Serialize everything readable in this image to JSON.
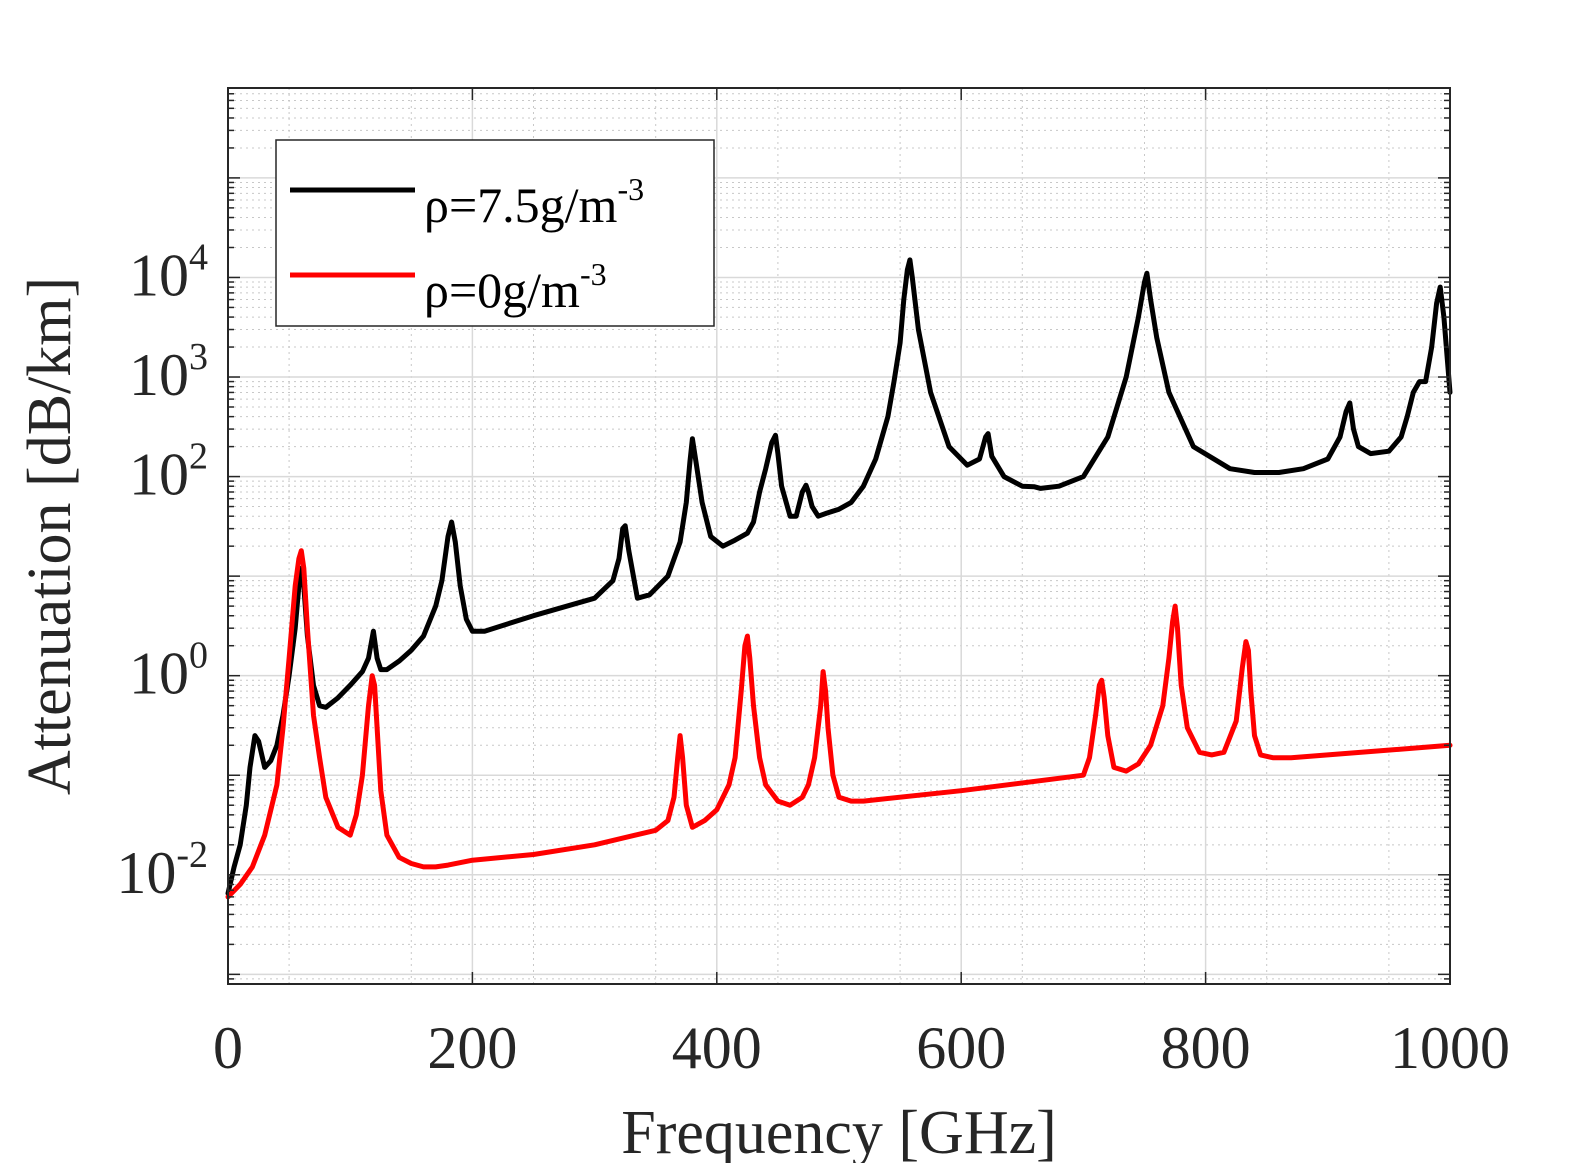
{
  "chart_data": {
    "type": "line",
    "title": "",
    "xlabel": "Frequency [GHz]",
    "ylabel": "Attenuation [dB/km]",
    "xlim": [
      0,
      1000
    ],
    "ylim": [
      0.0008,
      800000
    ],
    "yscale": "log",
    "xticks": [
      0,
      200,
      400,
      600,
      800,
      1000
    ],
    "xtick_labels": [
      "0",
      "200",
      "400",
      "600",
      "800",
      "1000"
    ],
    "yticks": [
      {
        "value": 0.01,
        "base": "10",
        "exp": "-2"
      },
      {
        "value": 1,
        "base": "10",
        "exp": "0"
      },
      {
        "value": 100,
        "base": "10",
        "exp": "2"
      },
      {
        "value": 1000,
        "base": "10",
        "exp": "3"
      },
      {
        "value": 10000,
        "base": "10",
        "exp": "4"
      }
    ],
    "grid": true,
    "minor_grid": true,
    "legend_position": "top-left",
    "series": [
      {
        "name": "ρ=7.5g/m",
        "name_sup": "-3",
        "color": "#000000",
        "x": [
          0,
          5,
          10,
          15,
          18,
          22,
          25,
          30,
          35,
          40,
          45,
          50,
          55,
          58,
          60,
          62,
          65,
          70,
          75,
          80,
          90,
          100,
          110,
          115,
          119,
          122,
          125,
          130,
          140,
          150,
          160,
          170,
          175,
          180,
          183,
          186,
          190,
          195,
          200,
          210,
          250,
          300,
          315,
          320,
          323,
          325,
          328,
          335,
          345,
          360,
          370,
          375,
          378,
          380,
          383,
          388,
          395,
          405,
          415,
          425,
          430,
          435,
          440,
          445,
          448,
          450,
          453,
          460,
          465,
          470,
          473,
          475,
          478,
          483,
          490,
          500,
          510,
          520,
          530,
          540,
          545,
          550,
          553,
          556,
          558,
          560,
          565,
          575,
          590,
          605,
          615,
          620,
          622,
          625,
          635,
          650,
          660,
          665,
          680,
          700,
          720,
          735,
          745,
          750,
          752,
          755,
          760,
          770,
          790,
          820,
          840,
          860,
          880,
          900,
          910,
          915,
          918,
          921,
          925,
          935,
          950,
          960,
          965,
          970,
          975,
          980,
          985,
          989,
          992,
          995,
          1000
        ],
        "y": [
          0.0065,
          0.012,
          0.02,
          0.05,
          0.12,
          0.25,
          0.22,
          0.12,
          0.14,
          0.2,
          0.4,
          1.0,
          3.0,
          8,
          12,
          8,
          2.5,
          0.8,
          0.5,
          0.48,
          0.6,
          0.8,
          1.1,
          1.5,
          2.8,
          1.5,
          1.15,
          1.15,
          1.4,
          1.8,
          2.5,
          5,
          9,
          25,
          35,
          22,
          8,
          3.7,
          2.8,
          2.8,
          4.0,
          6.0,
          9.0,
          15,
          30,
          32,
          18,
          6,
          6.5,
          10,
          22,
          55,
          140,
          240,
          140,
          55,
          25,
          20,
          23,
          27,
          35,
          70,
          120,
          220,
          260,
          170,
          80,
          40,
          40,
          70,
          82,
          70,
          50,
          40,
          43,
          47,
          55,
          80,
          150,
          400,
          900,
          2200,
          6000,
          12000,
          15000,
          10000,
          3000,
          700,
          200,
          130,
          150,
          250,
          270,
          160,
          100,
          80,
          79,
          76,
          80,
          100,
          250,
          1000,
          4000,
          9000,
          11000,
          6000,
          2500,
          700,
          200,
          120,
          110,
          110,
          120,
          150,
          250,
          450,
          550,
          300,
          200,
          170,
          180,
          250,
          400,
          700,
          900,
          900,
          2000,
          5500,
          8000,
          4000,
          700
        ]
      },
      {
        "name": "ρ=0g/m",
        "name_sup": "-3",
        "color": "#ff0000",
        "x": [
          0,
          10,
          20,
          30,
          40,
          45,
          50,
          55,
          58,
          60,
          62,
          65,
          70,
          75,
          80,
          90,
          100,
          105,
          110,
          115,
          118,
          120,
          122,
          125,
          130,
          140,
          150,
          160,
          170,
          180,
          200,
          250,
          300,
          350,
          360,
          365,
          368,
          370,
          372,
          375,
          380,
          390,
          400,
          410,
          415,
          420,
          423,
          425,
          427,
          430,
          435,
          440,
          450,
          460,
          470,
          475,
          480,
          485,
          487,
          489,
          491,
          495,
          500,
          510,
          520,
          600,
          700,
          705,
          710,
          713,
          715,
          717,
          720,
          725,
          735,
          745,
          755,
          765,
          770,
          773,
          775,
          777,
          780,
          785,
          795,
          805,
          815,
          825,
          830,
          833,
          835,
          837,
          840,
          845,
          855,
          870,
          900,
          1000
        ],
        "y": [
          0.006,
          0.008,
          0.012,
          0.025,
          0.08,
          0.3,
          1.5,
          8,
          15,
          18,
          12,
          3,
          0.4,
          0.15,
          0.06,
          0.03,
          0.025,
          0.04,
          0.1,
          0.5,
          1.0,
          0.8,
          0.3,
          0.07,
          0.025,
          0.015,
          0.013,
          0.012,
          0.012,
          0.0125,
          0.014,
          0.016,
          0.02,
          0.028,
          0.035,
          0.06,
          0.15,
          0.25,
          0.15,
          0.05,
          0.03,
          0.035,
          0.045,
          0.08,
          0.15,
          0.7,
          2.0,
          2.5,
          1.5,
          0.5,
          0.15,
          0.08,
          0.055,
          0.05,
          0.06,
          0.08,
          0.15,
          0.5,
          1.1,
          0.7,
          0.3,
          0.1,
          0.06,
          0.055,
          0.055,
          0.07,
          0.1,
          0.15,
          0.4,
          0.8,
          0.9,
          0.6,
          0.25,
          0.12,
          0.11,
          0.13,
          0.2,
          0.5,
          1.5,
          3.5,
          5,
          3,
          0.8,
          0.3,
          0.17,
          0.16,
          0.17,
          0.35,
          1.2,
          2.2,
          1.8,
          0.7,
          0.25,
          0.16,
          0.15,
          0.15,
          0.16,
          0.2
        ]
      }
    ]
  }
}
